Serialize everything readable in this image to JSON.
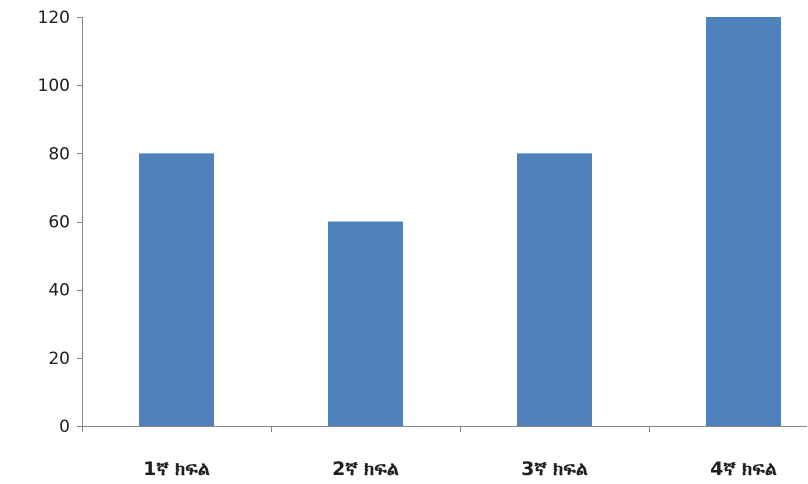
{
  "chart_data": {
    "type": "bar",
    "categories": [
      "1ኛ ክፍል",
      "2ኛ ክፍል",
      "3ኛ ክፍል",
      "4ኛ ክፍል"
    ],
    "values": [
      80,
      60,
      80,
      120
    ],
    "title": "",
    "xlabel": "",
    "ylabel": "",
    "ylim": [
      0,
      120
    ],
    "yticks": [
      0,
      20,
      40,
      60,
      80,
      100,
      120
    ],
    "grid": false,
    "legend": "none",
    "bar_color": "#4F81BD",
    "axis_color": "#868686"
  }
}
